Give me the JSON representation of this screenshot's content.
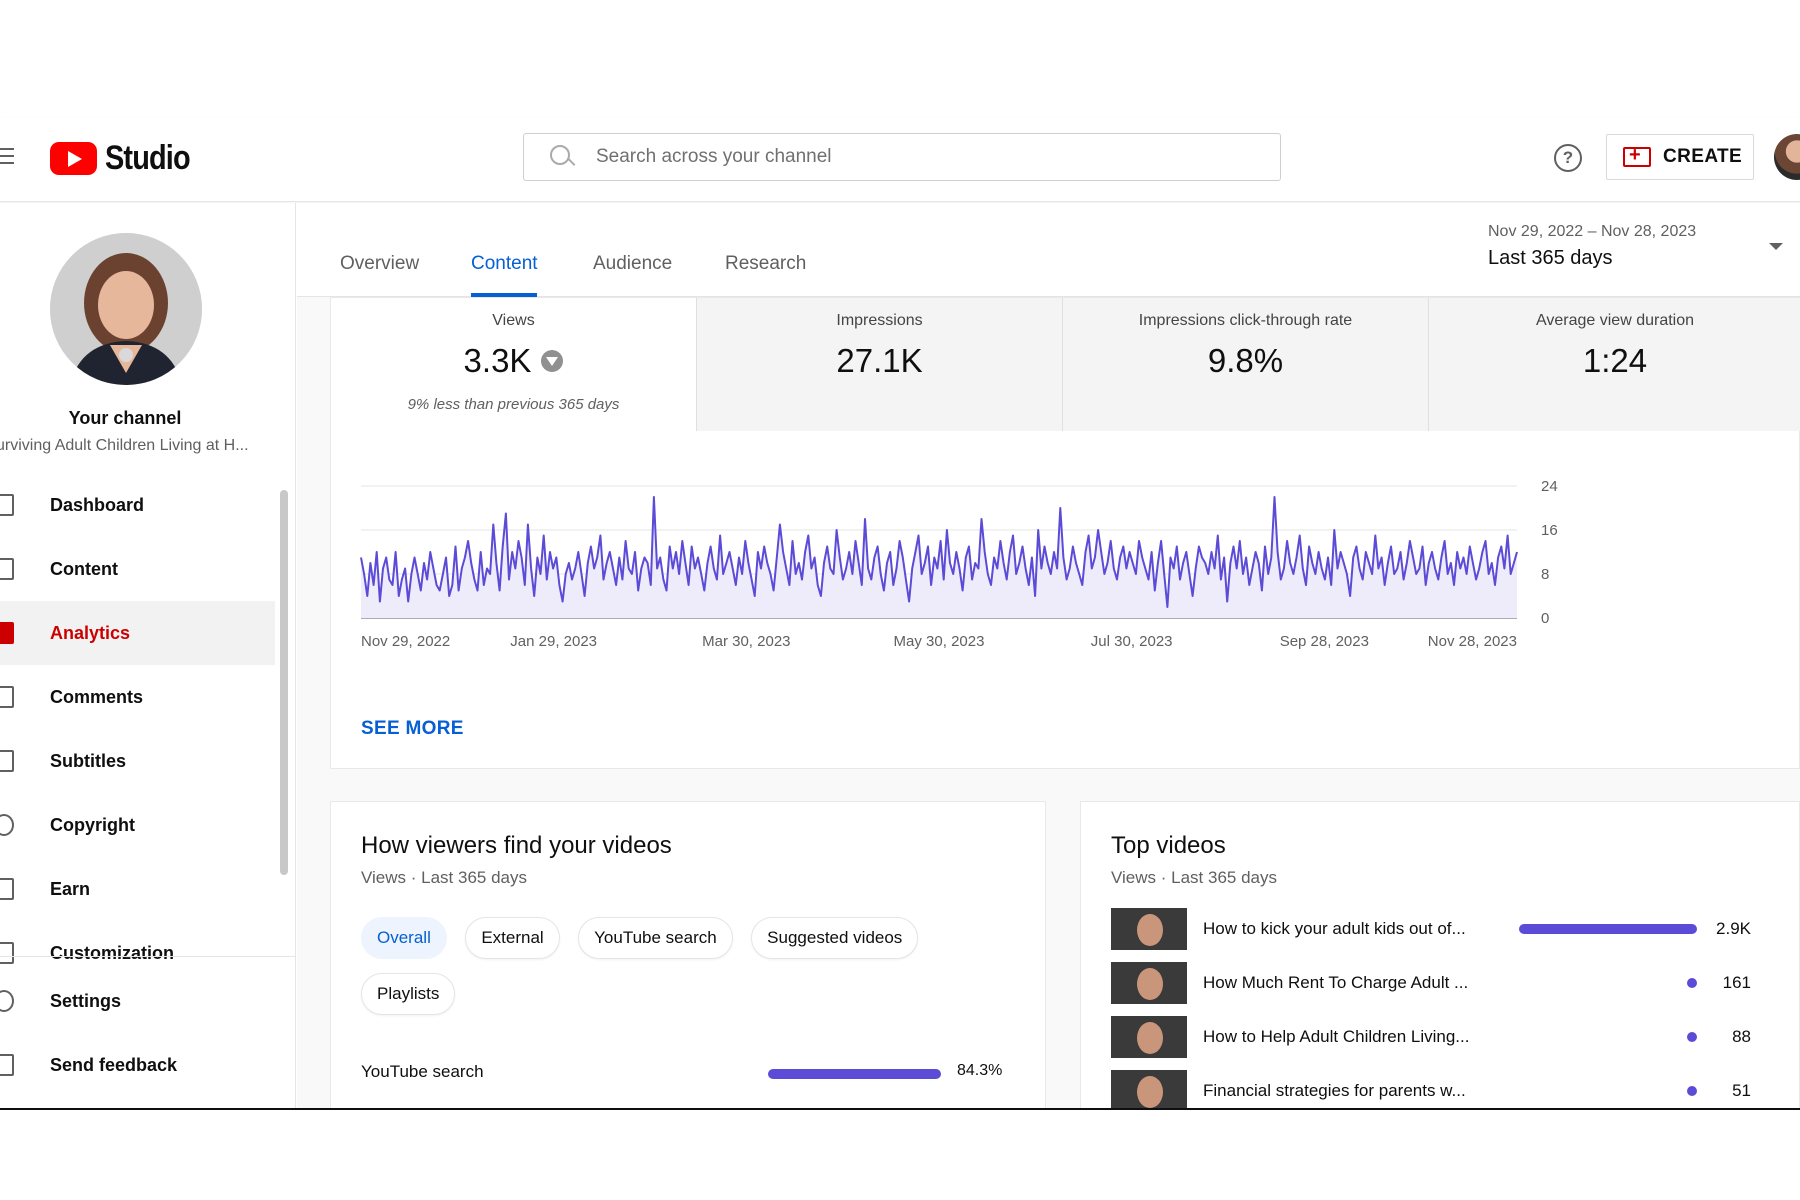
{
  "header": {
    "logo_text": "Studio",
    "search_placeholder": "Search across your channel",
    "help_glyph": "?",
    "create_label": "CREATE",
    "icons": [
      "menu-icon",
      "youtube-logo-icon",
      "search-icon",
      "help-icon",
      "create-video-icon",
      "account-avatar"
    ]
  },
  "sidebar": {
    "channel_title": "Your channel",
    "channel_name": "urviving Adult Children Living at H...",
    "items": [
      {
        "label": "Dashboard",
        "icon": "dashboard-icon"
      },
      {
        "label": "Content",
        "icon": "content-icon"
      },
      {
        "label": "Analytics",
        "icon": "analytics-icon",
        "active": true
      },
      {
        "label": "Comments",
        "icon": "comments-icon"
      },
      {
        "label": "Subtitles",
        "icon": "subtitles-icon"
      },
      {
        "label": "Copyright",
        "icon": "copyright-icon"
      },
      {
        "label": "Earn",
        "icon": "earn-icon"
      },
      {
        "label": "Customization",
        "icon": "customization-icon"
      }
    ],
    "bottom_items": [
      {
        "label": "Settings",
        "icon": "settings-icon"
      },
      {
        "label": "Send feedback",
        "icon": "feedback-icon"
      }
    ]
  },
  "tabs": [
    {
      "label": "Overview"
    },
    {
      "label": "Content",
      "active": true
    },
    {
      "label": "Audience"
    },
    {
      "label": "Research"
    }
  ],
  "date": {
    "range": "Nov 29, 2022 – Nov 28, 2023",
    "label": "Last 365 days"
  },
  "metrics": [
    {
      "label": "Views",
      "value": "3.3K",
      "note": "9% less than previous 365 days",
      "active": true
    },
    {
      "label": "Impressions",
      "value": "27.1K"
    },
    {
      "label": "Impressions click-through rate",
      "value": "9.8%"
    },
    {
      "label": "Average view duration",
      "value": "1:24"
    }
  ],
  "see_more": "SEE MORE",
  "chart_data": {
    "type": "area",
    "x_ticks": [
      "Nov 29, 2022",
      "Jan 29, 2023",
      "Mar 30, 2023",
      "May 30, 2023",
      "Jul 30, 2023",
      "Sep 28, 2023",
      "Nov 28, 2023"
    ],
    "y_ticks": [
      0,
      8,
      16,
      24
    ],
    "ylim": [
      0,
      24
    ],
    "series_color": "#5b4bd6",
    "fill_color": "#eeecfb",
    "y_axis_position": "right",
    "values": [
      11,
      8,
      4,
      10,
      6,
      12,
      3,
      9,
      11,
      7,
      6,
      12,
      4,
      7,
      9,
      3,
      8,
      11,
      8,
      5,
      10,
      7,
      12,
      9,
      6,
      5,
      8,
      11,
      4,
      6,
      13,
      5,
      9,
      11,
      14,
      10,
      7,
      5,
      12,
      6,
      9,
      8,
      17,
      10,
      5,
      13,
      19,
      7,
      12,
      9,
      14,
      11,
      6,
      17,
      9,
      4,
      11,
      8,
      15,
      7,
      12,
      9,
      11,
      6,
      3,
      8,
      10,
      7,
      9,
      12,
      8,
      4,
      10,
      13,
      9,
      11,
      15,
      7,
      10,
      12,
      9,
      6,
      11,
      7,
      14,
      9,
      8,
      12,
      5,
      9,
      11,
      10,
      6,
      22,
      9,
      11,
      7,
      5,
      13,
      9,
      12,
      8,
      14,
      10,
      6,
      13,
      9,
      11,
      8,
      5,
      10,
      13,
      9,
      7,
      15,
      8,
      10,
      12,
      9,
      6,
      11,
      8,
      14,
      10,
      7,
      4,
      12,
      9,
      13,
      10,
      8,
      5,
      11,
      17,
      12,
      9,
      6,
      14,
      8,
      10,
      7,
      12,
      15,
      9,
      11,
      6,
      4,
      10,
      13,
      9,
      8,
      16,
      11,
      7,
      9,
      12,
      8,
      14,
      10,
      6,
      18,
      9,
      7,
      11,
      13,
      8,
      5,
      10,
      12,
      6,
      9,
      14,
      11,
      7,
      3,
      9,
      12,
      15,
      8,
      10,
      13,
      6,
      11,
      9,
      14,
      7,
      16,
      10,
      8,
      12,
      9,
      5,
      11,
      13,
      7,
      10,
      9,
      18,
      12,
      8,
      6,
      11,
      9,
      14,
      10,
      7,
      12,
      15,
      8,
      10,
      13,
      9,
      6,
      11,
      4,
      16,
      9,
      13,
      10,
      8,
      12,
      9,
      20,
      11,
      7,
      9,
      13,
      10,
      8,
      6,
      12,
      15,
      9,
      11,
      16,
      12,
      8,
      10,
      14,
      9,
      7,
      11,
      13,
      9,
      12,
      10,
      8,
      14,
      11,
      9,
      7,
      12,
      5,
      10,
      14,
      8,
      2,
      11,
      9,
      13,
      7,
      10,
      12,
      8,
      4,
      9,
      13,
      11,
      10,
      8,
      12,
      9,
      15,
      7,
      11,
      3,
      10,
      13,
      9,
      14,
      8,
      11,
      6,
      9,
      12,
      10,
      5,
      13,
      8,
      11,
      22,
      12,
      7,
      9,
      14,
      10,
      8,
      11,
      15,
      9,
      6,
      13,
      10,
      8,
      12,
      9,
      7,
      11,
      6,
      16,
      9,
      12,
      10,
      8,
      4,
      11,
      13,
      9,
      7,
      12,
      10,
      8,
      15,
      9,
      11,
      6,
      10,
      13,
      8,
      9,
      12,
      7,
      10,
      14,
      11,
      8,
      9,
      13,
      6,
      10,
      12,
      9,
      7,
      11,
      14,
      8,
      10,
      6,
      12,
      9,
      11,
      8,
      13,
      10,
      7,
      9,
      12,
      14,
      8,
      10,
      6,
      11,
      13,
      9,
      15,
      8,
      10,
      12
    ]
  },
  "find_card": {
    "title": "How viewers find your videos",
    "subtitle": "Views · Last 365 days",
    "chips": [
      {
        "label": "Overall",
        "active": true
      },
      {
        "label": "External"
      },
      {
        "label": "YouTube search"
      },
      {
        "label": "Suggested videos"
      },
      {
        "label": "Playlists"
      }
    ],
    "sources": [
      {
        "label": "YouTube search",
        "value": "84.3%",
        "fraction": 0.843
      }
    ]
  },
  "top_card": {
    "title": "Top videos",
    "subtitle": "Views · Last 365 days",
    "videos": [
      {
        "title": "How to kick your adult kids out of...",
        "views": "2.9K",
        "count": 2900
      },
      {
        "title": "How Much Rent To Charge Adult ...",
        "views": "161",
        "count": 161
      },
      {
        "title": "How to Help Adult Children Living...",
        "views": "88",
        "count": 88
      },
      {
        "title": "Financial strategies for parents w...",
        "views": "51",
        "count": 51
      }
    ]
  }
}
